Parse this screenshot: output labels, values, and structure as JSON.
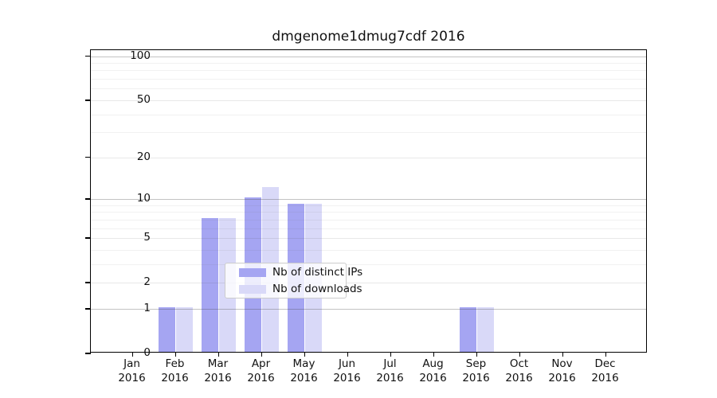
{
  "title": "dmgenome1dmug7cdf 2016",
  "chart_data": {
    "type": "bar",
    "title": "dmgenome1dmug7cdf 2016",
    "scale": "log1p",
    "categories": [
      "Jan",
      "Feb",
      "Mar",
      "Apr",
      "May",
      "Jun",
      "Jul",
      "Aug",
      "Sep",
      "Oct",
      "Nov",
      "Dec"
    ],
    "category_year": "2016",
    "series": [
      {
        "name": "Nb of distinct IPs",
        "color": "#a5a5f2",
        "values": [
          0,
          1,
          7,
          10,
          9,
          0,
          0,
          0,
          1,
          0,
          0,
          0
        ]
      },
      {
        "name": "Nb of downloads",
        "color": "#d9d9f8",
        "values": [
          0,
          1,
          7,
          12,
          9,
          0,
          0,
          0,
          1,
          0,
          0,
          0
        ]
      }
    ],
    "y_ticks": [
      0,
      1,
      2,
      5,
      10,
      20,
      50,
      100
    ],
    "y_major_ticks": [
      1,
      10,
      100
    ],
    "y_minor_gridlines": [
      3,
      4,
      6,
      7,
      8,
      9,
      30,
      40,
      60,
      70,
      80,
      90
    ],
    "ylim": [
      0,
      110
    ],
    "xlabel": "",
    "ylabel": "",
    "grid": true,
    "legend_position": "lower-center"
  }
}
